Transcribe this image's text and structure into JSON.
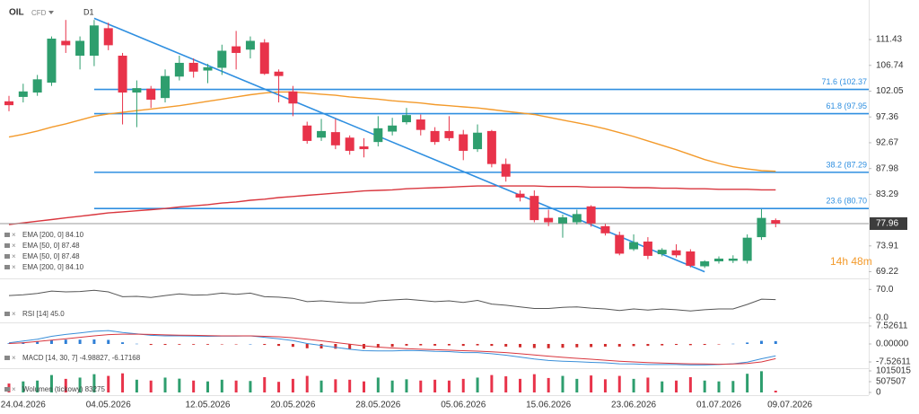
{
  "chart_data": [
    {
      "type": "candlestick",
      "title": "OIL",
      "subtitle": "CFD",
      "timeframe": "D1",
      "categories": [
        null,
        "24.04.2026",
        null,
        null,
        null,
        null,
        null,
        "04.05.2026",
        null,
        null,
        null,
        null,
        null,
        null,
        "12.05.2026",
        null,
        null,
        null,
        null,
        null,
        "20.05.2026",
        null,
        null,
        null,
        null,
        null,
        "28.05.2026",
        null,
        null,
        null,
        null,
        null,
        "05.06.2026",
        null,
        null,
        null,
        null,
        null,
        "15.06.2026",
        null,
        null,
        null,
        null,
        null,
        "23.06.2026",
        null,
        null,
        null,
        null,
        null,
        "01.07.2026",
        null,
        null,
        null,
        null,
        "09.07.2026"
      ],
      "open": [
        100.2,
        101,
        101.8,
        103.6,
        111.2,
        108.5,
        108.5,
        113.5,
        108.5,
        101.8,
        102.5,
        100.8,
        104.7,
        107.2,
        105.8,
        106.3,
        110.2,
        109.6,
        110.9,
        105.6,
        102,
        95.8,
        93.6,
        94.6,
        93.6,
        92,
        92.8,
        94.7,
        96.4,
        96.9,
        94.8,
        94.8,
        94.2,
        91.5,
        94.8,
        88.8,
        83.4,
        83,
        79,
        78,
        78.2,
        81.1,
        77.5,
        75.9,
        73.3,
        74.7,
        72.4,
        73.1,
        72.9,
        70.2,
        71.1,
        71.2,
        71.2,
        75.5,
        78.6,
        null
      ],
      "high": [
        101.2,
        103.4,
        105,
        112,
        115,
        112,
        115,
        114.5,
        109,
        104,
        103,
        106,
        108.5,
        108,
        107,
        110.5,
        113,
        112,
        111.5,
        106,
        103,
        96.5,
        97,
        97,
        94,
        93.5,
        97.5,
        97.2,
        99,
        97.8,
        95.5,
        97.5,
        95,
        96,
        95,
        89.8,
        84,
        84,
        80.5,
        79.6,
        80.5,
        81.3,
        77.9,
        76.5,
        76,
        75.5,
        73.5,
        74.2,
        73.3,
        71.3,
        72,
        72.2,
        76,
        80.6,
        78.9,
        null
      ],
      "low": [
        98.4,
        100,
        101.2,
        103,
        109,
        106,
        106.6,
        109.5,
        96,
        95.5,
        99,
        100,
        104,
        104.5,
        103.5,
        105,
        106,
        108,
        105,
        100,
        97.5,
        92.5,
        93,
        91.5,
        90.5,
        90,
        92,
        94,
        96,
        94,
        92.3,
        93,
        89.5,
        91,
        88.2,
        85.6,
        82,
        78.2,
        77.5,
        75.4,
        77.8,
        77.4,
        75.8,
        72.2,
        73,
        71.5,
        72,
        71.8,
        70,
        69.9,
        70.7,
        70.8,
        70.7,
        75,
        77.3,
        null
      ],
      "close": [
        99.5,
        102.0,
        104.2,
        111.6,
        110.4,
        111.2,
        114,
        110.4,
        101.8,
        102.6,
        100.5,
        104.8,
        107.2,
        105.6,
        106.4,
        109.4,
        109,
        111.2,
        105.2,
        104.8,
        99.8,
        93,
        94.8,
        92.2,
        91.2,
        91.5,
        95.3,
        95.8,
        97.7,
        95,
        92.8,
        93.5,
        91.2,
        94.5,
        88.8,
        86.5,
        82.7,
        78.6,
        78.2,
        79.1,
        79.7,
        78,
        76.2,
        72.5,
        74.6,
        72.1,
        73.2,
        72.2,
        70.3,
        71.1,
        71.6,
        71.6,
        75.4,
        79,
        77.96,
        null
      ],
      "up_color": "#2e9e6e",
      "down_color": "#e8334a",
      "ylim": [
        68.0,
        118.3
      ],
      "yticks": [
        {
          "value": 111.43,
          "label": "111.43"
        },
        {
          "value": 106.74,
          "label": "106.74"
        },
        {
          "value": 102.05,
          "label": "102.05"
        },
        {
          "value": 97.36,
          "label": "97.36"
        },
        {
          "value": 92.67,
          "label": "92.67"
        },
        {
          "value": 87.98,
          "label": "87.98"
        },
        {
          "value": 83.29,
          "label": "83.29"
        },
        {
          "value": 73.91,
          "label": "73.91"
        },
        {
          "value": 69.22,
          "label": "69.22"
        }
      ],
      "last_price": 77.96,
      "countdown": "14h 48m",
      "series": [
        {
          "name": "EMA [200, 0] 84.10",
          "color": "#d9363e",
          "values": [
            77.8,
            78.1,
            78.4,
            78.7,
            79.0,
            79.3,
            79.6,
            79.9,
            80.1,
            80.3,
            80.5,
            80.7,
            81.0,
            81.2,
            81.4,
            81.7,
            81.9,
            82.2,
            82.4,
            82.7,
            82.9,
            83.1,
            83.3,
            83.5,
            83.7,
            83.9,
            84.0,
            84.1,
            84.3,
            84.4,
            84.5,
            84.6,
            84.7,
            84.8,
            84.8,
            84.8,
            84.8,
            84.8,
            84.7,
            84.7,
            84.7,
            84.6,
            84.6,
            84.6,
            84.5,
            84.5,
            84.4,
            84.4,
            84.3,
            84.3,
            84.2,
            84.2,
            84.2,
            84.1,
            84.1,
            null
          ]
        },
        {
          "name": "EMA [50, 0] 87.48",
          "color": "#f39a2b",
          "values": [
            93.7,
            94.2,
            94.8,
            95.5,
            96.1,
            96.8,
            97.5,
            97.9,
            98.2,
            98.5,
            98.8,
            99.1,
            99.4,
            99.8,
            100.2,
            100.6,
            101.0,
            101.4,
            101.7,
            101.9,
            101.9,
            101.7,
            101.5,
            101.3,
            101.0,
            100.8,
            100.6,
            100.3,
            100.1,
            99.9,
            99.6,
            99.4,
            99.2,
            99.0,
            98.7,
            98.4,
            98.1,
            97.8,
            97.3,
            96.8,
            96.3,
            95.8,
            95.2,
            94.5,
            93.8,
            93.0,
            92.2,
            91.4,
            90.5,
            89.6,
            88.9,
            88.3,
            87.9,
            87.6,
            87.48,
            null
          ]
        }
      ],
      "legend_labels": [
        "EMA [200, 0] 84.10",
        "EMA [50, 0] 87.48",
        "EMA [50, 0] 87.48",
        "EMA [200, 0] 84.10"
      ],
      "levels": [
        {
          "label": "71.6 (102.37",
          "value": 102.37
        },
        {
          "label": "61.8 (97.95",
          "value": 97.95
        },
        {
          "label": "38.2 (87.29",
          "value": 87.29
        },
        {
          "label": "23.6 (80.70",
          "value": 80.7
        }
      ],
      "level_color": "#2f8fe0",
      "level_start": 6,
      "trendline": {
        "x": [
          6,
          49
        ],
        "values": [
          115.3,
          69.2
        ],
        "color": "#2f8fe0"
      }
    },
    {
      "type": "line",
      "title": "RSI [14] 45.0",
      "series": [
        {
          "color": "#555555",
          "values": [
            55,
            57,
            60,
            66,
            64,
            65,
            68,
            64,
            52,
            53,
            50,
            55,
            59,
            56,
            57,
            61,
            58,
            61,
            52,
            51,
            48,
            40,
            42,
            39,
            37,
            37,
            42,
            44,
            46,
            43,
            40,
            42,
            38,
            43,
            34,
            31,
            27,
            23,
            23,
            26,
            27,
            24,
            22,
            18,
            22,
            19,
            22,
            20,
            17,
            20,
            22,
            22,
            33,
            46,
            45,
            null
          ]
        }
      ],
      "ylim": [
        -9,
        95
      ],
      "yticks": [
        {
          "value": 70,
          "label": "70.0"
        },
        {
          "value": 0,
          "label": "0.0"
        }
      ]
    },
    {
      "type": "macd",
      "title": "MACD [14, 30, 7] -4.98827, -6.17168",
      "histogram": [
        0.3,
        0.7,
        1.0,
        1.6,
        1.8,
        1.8,
        1.9,
        1.7,
        0.7,
        0.1,
        -0.4,
        -0.4,
        -0.3,
        -0.3,
        -0.3,
        -0.1,
        -0.1,
        0.0,
        -0.4,
        -0.8,
        -1.2,
        -1.8,
        -1.9,
        -2.0,
        -2.1,
        -2.0,
        -1.6,
        -1.2,
        -0.7,
        -0.6,
        -0.7,
        -0.6,
        -0.8,
        -0.6,
        -0.8,
        -1.1,
        -1.4,
        -1.7,
        -1.8,
        -1.6,
        -1.4,
        -1.3,
        -1.1,
        -1.1,
        -0.9,
        -0.8,
        -0.6,
        -0.4,
        -0.5,
        -0.4,
        -0.1,
        0.1,
        0.6,
        1.3,
        1.18,
        null
      ],
      "up_color": "#2f7fd6",
      "down_color": "#d12a2a",
      "series": [
        {
          "color": "#3a8fd9",
          "values": [
            0.5,
            1.2,
            2.0,
            3.2,
            4.0,
            4.6,
            5.3,
            5.6,
            4.8,
            4.2,
            3.6,
            3.4,
            3.4,
            3.3,
            3.2,
            3.3,
            3.3,
            3.4,
            2.8,
            2.2,
            1.4,
            0.2,
            -0.6,
            -1.4,
            -2.2,
            -2.8,
            -2.9,
            -2.9,
            -2.7,
            -2.8,
            -3.1,
            -3.2,
            -3.6,
            -3.6,
            -4.1,
            -4.7,
            -5.5,
            -6.3,
            -6.9,
            -7.2,
            -7.4,
            -7.7,
            -7.9,
            -8.3,
            -8.4,
            -8.6,
            -8.6,
            -8.6,
            -8.8,
            -8.8,
            -8.6,
            -8.3,
            -7.6,
            -6.2,
            -4.98827,
            null
          ]
        },
        {
          "color": "#d9363e",
          "values": [
            0.2,
            0.5,
            1.0,
            1.6,
            2.2,
            2.8,
            3.4,
            3.9,
            4.1,
            4.1,
            4.0,
            3.8,
            3.7,
            3.6,
            3.5,
            3.4,
            3.4,
            3.4,
            3.2,
            3.0,
            2.6,
            2.0,
            1.3,
            0.6,
            -0.1,
            -0.8,
            -1.3,
            -1.7,
            -2.0,
            -2.2,
            -2.4,
            -2.6,
            -2.8,
            -3.0,
            -3.3,
            -3.6,
            -4.1,
            -4.6,
            -5.1,
            -5.6,
            -6.0,
            -6.4,
            -6.8,
            -7.2,
            -7.5,
            -7.8,
            -8.0,
            -8.2,
            -8.3,
            -8.4,
            -8.5,
            -8.4,
            -8.2,
            -7.5,
            -6.17168,
            null
          ]
        }
      ],
      "ylim": [
        -10.15,
        8.65
      ],
      "yticks": [
        {
          "value": 7.52611,
          "label": "7.52611"
        },
        {
          "value": 0,
          "label": "0.00000"
        },
        {
          "value": -7.52611,
          "label": "-7.52611"
        }
      ]
    },
    {
      "type": "bar",
      "title": "Wolumen (tickowy) 83275",
      "values": [
        420000,
        520000,
        560000,
        820000,
        640000,
        700000,
        860000,
        780000,
        900000,
        600000,
        560000,
        700000,
        650000,
        560000,
        520000,
        600000,
        560000,
        540000,
        720000,
        500000,
        640000,
        780000,
        560000,
        620000,
        600000,
        520000,
        700000,
        560000,
        620000,
        560000,
        600000,
        560000,
        640000,
        700000,
        820000,
        760000,
        640000,
        860000,
        680000,
        780000,
        640000,
        800000,
        620000,
        780000,
        640000,
        700000,
        520000,
        560000,
        720000,
        560000,
        520000,
        540000,
        880000,
        1000000,
        83275,
        null
      ],
      "ylim": [
        0,
        1100000
      ],
      "yticks": [
        1015015,
        507507,
        0
      ]
    }
  ]
}
